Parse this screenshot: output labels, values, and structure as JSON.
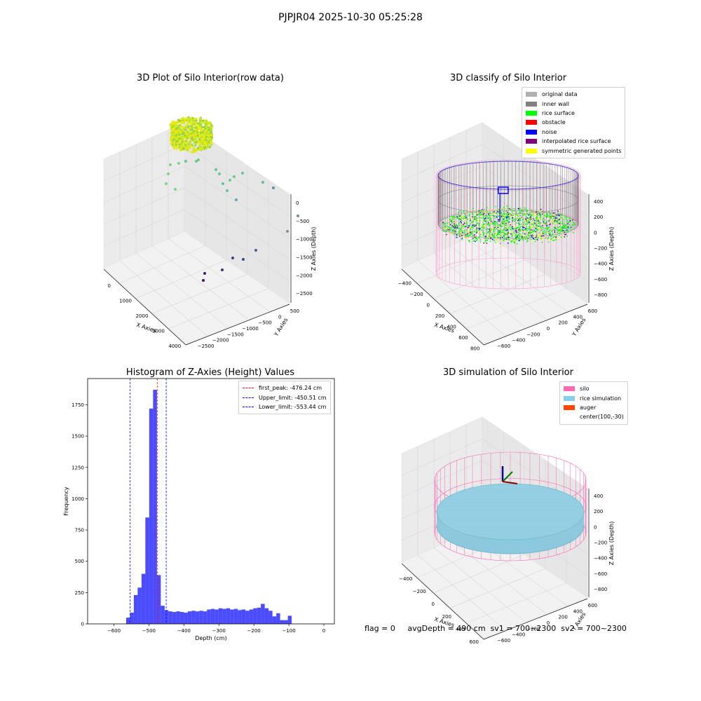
{
  "suptitle": "PJPJR04 2025-10-30 05:25:28",
  "panels": {
    "raw": {
      "title": "3D Plot of Silo Interior(row data)",
      "x_label": "X Axies",
      "y_label": "Y Axies",
      "z_label": "Z Axies (Depth)",
      "x_ticks": [
        "0",
        "1000",
        "2000",
        "3000",
        "4000"
      ],
      "y_ticks": [
        "500",
        "0",
        "−500",
        "−1000",
        "−1500",
        "−2000",
        "−2500"
      ],
      "z_ticks": [
        "0",
        "−500",
        "−1000",
        "−1500",
        "−2000",
        "−2500"
      ]
    },
    "classify": {
      "title": "3D classify of Silo Interior",
      "x_label": "X Axies",
      "y_label": "Y Axies",
      "z_label": "Z Axies (Depth)",
      "x_ticks": [
        "−400",
        "−200",
        "0",
        "200",
        "400",
        "600",
        "800"
      ],
      "y_ticks": [
        "600",
        "400",
        "200",
        "0",
        "−200",
        "−400",
        "−600"
      ],
      "z_ticks": [
        "400",
        "200",
        "0",
        "−200",
        "−400",
        "−600",
        "−800"
      ],
      "legend": [
        {
          "label": "original data",
          "color": "#b0b0b0"
        },
        {
          "label": "inner wall",
          "color": "#808080"
        },
        {
          "label": "rice surface",
          "color": "#00ff00"
        },
        {
          "label": "obstacle",
          "color": "#ff0000"
        },
        {
          "label": "noise",
          "color": "#0000ff"
        },
        {
          "label": "interpolated rice surface",
          "color": "#800080"
        },
        {
          "label": "symmetric generated points",
          "color": "#ffff00"
        }
      ]
    },
    "simulation": {
      "title": "3D simulation of Silo Interior",
      "x_label": "X Axies",
      "y_label": "Y Axies",
      "z_label": "Z Axies (Depth)",
      "x_ticks": [
        "−400",
        "−200",
        "0",
        "200",
        "400",
        "600"
      ],
      "y_ticks": [
        "600",
        "400",
        "200",
        "0",
        "−200",
        "−400",
        "−600"
      ],
      "z_ticks": [
        "400",
        "200",
        "0",
        "−200",
        "−400",
        "−600",
        "−800"
      ],
      "legend": [
        {
          "label": "silo",
          "color": "#ff69b4"
        },
        {
          "label": "rice simulation",
          "color": "#87ceeb"
        },
        {
          "label": "auger",
          "color": "#ff4500"
        },
        {
          "label": "center(100,-30)",
          "color": ""
        }
      ]
    }
  },
  "chart_data": {
    "type": "bar",
    "title": "Histogram of Z-Axies (Height) Values",
    "xlabel": "Depth (cm)",
    "ylabel": "Frequency",
    "xlim": [
      -675,
      30
    ],
    "ylim": [
      0,
      1960
    ],
    "x_ticks": [
      -600,
      -500,
      -400,
      -300,
      -200,
      -100,
      0
    ],
    "x_tick_labels": [
      "−600",
      "−500",
      "−400",
      "−300",
      "−200",
      "−100",
      "0"
    ],
    "y_ticks": [
      0,
      250,
      500,
      750,
      1000,
      1250,
      1500,
      1750
    ],
    "y_tick_labels": [
      "0",
      "250",
      "500",
      "750",
      "1000",
      "1250",
      "1500",
      "1750"
    ],
    "bin_start": -565,
    "bin_width": 11,
    "values": [
      50,
      90,
      230,
      290,
      400,
      850,
      1720,
      1870,
      390,
      145,
      110,
      100,
      95,
      100,
      95,
      90,
      100,
      105,
      100,
      105,
      100,
      115,
      120,
      115,
      125,
      120,
      125,
      115,
      120,
      110,
      115,
      105,
      115,
      125,
      130,
      160,
      125,
      105,
      60,
      85,
      30,
      30,
      65
    ],
    "color": "#0000ff",
    "vlines": [
      {
        "label": "first_peak: -476.24 cm",
        "x": -476.24,
        "color": "#ff0000"
      },
      {
        "label": "Upper_limit: -450.51 cm",
        "x": -450.51,
        "color": "#0000ff"
      },
      {
        "label": "Lower_limit: -553.44 cm",
        "x": -553.44,
        "color": "#0000ff"
      }
    ],
    "grid": false,
    "legend_position": "top-right"
  },
  "status": {
    "flag": "flag = 0",
    "avg_depth": "avgDepth = 490 cm",
    "sv1": "sv1 = 700~2300",
    "sv2": "sv2 = 700~2300"
  }
}
